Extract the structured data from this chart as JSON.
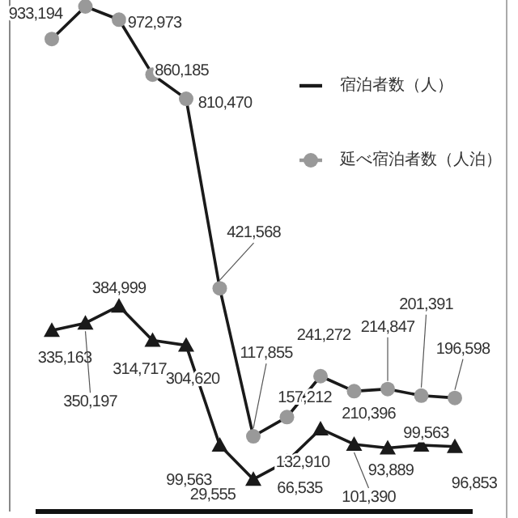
{
  "chart_data": {
    "type": "line",
    "categories": [
      null,
      null,
      null,
      null,
      null,
      null,
      null,
      null,
      null,
      null,
      null,
      null,
      null
    ],
    "legend": "right",
    "series": [
      {
        "name": "宿泊者数（人）",
        "color": "#1a1a1a",
        "marker": "triangle",
        "values": [
          335163,
          350197,
          384999,
          314717,
          304620,
          99563,
          29555,
          66535,
          132910,
          101390,
          93889,
          99563,
          96853
        ],
        "value_labels": [
          "335,163",
          "350,197",
          "384,999",
          "314,717",
          "304,620",
          "99,563",
          "29,555",
          "66,535",
          "132,910",
          "101,390",
          "93,889",
          "99,563",
          "96,853"
        ]
      },
      {
        "name": "延べ宿泊者数（人泊）",
        "color": "#999999",
        "marker": "circle",
        "values": [
          933194,
          1000000,
          972973,
          860185,
          810470,
          421568,
          117855,
          157212,
          241272,
          210396,
          214847,
          201391,
          196598
        ],
        "value_labels": [
          "933,194",
          null,
          "972,973",
          "860,185",
          "810,470",
          "421,568",
          "117,855",
          "157,212",
          "241,272",
          "210,396",
          "214,847",
          "201,391",
          "196,598"
        ]
      }
    ]
  }
}
